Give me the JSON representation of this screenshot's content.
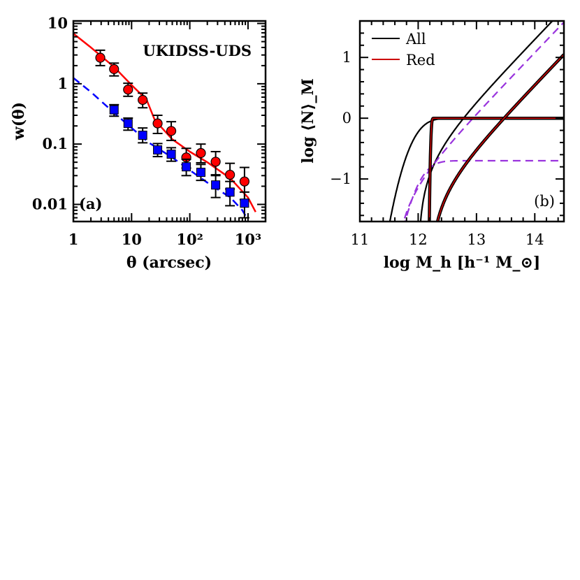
{
  "chart_data": [
    {
      "panel": "a",
      "type": "scatter",
      "title": "UKIDSS-UDS",
      "panel_label": "(a)",
      "xlabel": "θ (arcsec)",
      "ylabel": "w(θ)",
      "xscale": "log",
      "yscale": "log",
      "xlim": [
        1,
        2000
      ],
      "ylim": [
        0.0052,
        11
      ],
      "xticks": [
        {
          "v": 1,
          "label": "1"
        },
        {
          "v": 10,
          "label": "10"
        },
        {
          "v": 100,
          "label": "10²"
        },
        {
          "v": 1000,
          "label": "10³"
        }
      ],
      "yticks": [
        {
          "v": 0.01,
          "label": "0.01"
        },
        {
          "v": 0.1,
          "label": "0.1"
        },
        {
          "v": 1,
          "label": "1"
        },
        {
          "v": 10,
          "label": "10"
        }
      ],
      "series": [
        {
          "marker": "circle",
          "color": "#ff0000",
          "points": [
            {
              "x": 2.9,
              "y": 2.7,
              "lo": 2.0,
              "hi": 3.6
            },
            {
              "x": 5.0,
              "y": 1.75,
              "lo": 1.35,
              "hi": 2.2
            },
            {
              "x": 8.7,
              "y": 0.8,
              "lo": 0.62,
              "hi": 1.02
            },
            {
              "x": 15.5,
              "y": 0.54,
              "lo": 0.4,
              "hi": 0.7
            },
            {
              "x": 28,
              "y": 0.22,
              "lo": 0.15,
              "hi": 0.3
            },
            {
              "x": 48,
              "y": 0.165,
              "lo": 0.115,
              "hi": 0.235
            },
            {
              "x": 87,
              "y": 0.06,
              "lo": 0.04,
              "hi": 0.085
            },
            {
              "x": 155,
              "y": 0.071,
              "lo": 0.049,
              "hi": 0.1
            },
            {
              "x": 278,
              "y": 0.051,
              "lo": 0.031,
              "hi": 0.075
            },
            {
              "x": 490,
              "y": 0.031,
              "lo": 0.018,
              "hi": 0.048
            },
            {
              "x": 870,
              "y": 0.024,
              "lo": 0.012,
              "hi": 0.041
            }
          ]
        },
        {
          "marker": "square",
          "color": "#0000ff",
          "points": [
            {
              "x": 5.0,
              "y": 0.37,
              "lo": 0.29,
              "hi": 0.45
            },
            {
              "x": 8.7,
              "y": 0.22,
              "lo": 0.17,
              "hi": 0.27
            },
            {
              "x": 15.5,
              "y": 0.14,
              "lo": 0.105,
              "hi": 0.185
            },
            {
              "x": 28,
              "y": 0.08,
              "lo": 0.062,
              "hi": 0.102
            },
            {
              "x": 48,
              "y": 0.068,
              "lo": 0.052,
              "hi": 0.087
            },
            {
              "x": 87,
              "y": 0.042,
              "lo": 0.03,
              "hi": 0.056
            },
            {
              "x": 155,
              "y": 0.034,
              "lo": 0.025,
              "hi": 0.046
            },
            {
              "x": 278,
              "y": 0.021,
              "lo": 0.013,
              "hi": 0.03
            },
            {
              "x": 490,
              "y": 0.016,
              "lo": 0.0095,
              "hi": 0.024
            },
            {
              "x": 870,
              "y": 0.0105,
              "lo": 0.006,
              "hi": 0.016
            }
          ]
        }
      ],
      "curves": [
        {
          "color": "#ff0000",
          "dash": "solid",
          "points": [
            [
              1,
              6.8
            ],
            [
              2,
              4.0
            ],
            [
              5,
              1.9
            ],
            [
              10,
              0.95
            ],
            [
              18,
              0.55
            ],
            [
              25,
              0.25
            ],
            [
              50,
              0.12
            ],
            [
              100,
              0.075
            ],
            [
              200,
              0.05
            ],
            [
              500,
              0.027
            ],
            [
              1000,
              0.013
            ],
            [
              1350,
              0.0075
            ]
          ]
        },
        {
          "color": "#0000ff",
          "dash": "dashed",
          "points": [
            [
              1,
              1.25
            ],
            [
              2,
              0.73
            ],
            [
              5,
              0.33
            ],
            [
              10,
              0.185
            ],
            [
              20,
              0.105
            ],
            [
              50,
              0.06
            ],
            [
              100,
              0.037
            ],
            [
              200,
              0.023
            ],
            [
              500,
              0.013
            ],
            [
              800,
              0.008
            ],
            [
              1000,
              0.0055
            ]
          ]
        }
      ]
    },
    {
      "panel": "b",
      "type": "line",
      "panel_label": "(b)",
      "xlabel": "log M_h [h⁻¹ M_⊙]",
      "ylabel": "log ⟨N⟩_M",
      "xlim": [
        11,
        14.5
      ],
      "ylim": [
        -1.7,
        1.6
      ],
      "xticks": [
        {
          "v": 11,
          "label": "11"
        },
        {
          "v": 12,
          "label": "12"
        },
        {
          "v": 13,
          "label": "13"
        },
        {
          "v": 14,
          "label": "14"
        }
      ],
      "yticks": [
        {
          "v": -1,
          "label": "−1"
        },
        {
          "v": 0,
          "label": "0"
        },
        {
          "v": 1,
          "label": "1"
        }
      ],
      "legend": [
        {
          "label": "All",
          "color": "#000000"
        },
        {
          "label": "Red",
          "color": "#cc0000"
        }
      ],
      "curves": [
        {
          "color": "#000000",
          "dash": "solid",
          "kind": "central",
          "mmin": 11.95,
          "sigma": 0.3,
          "amp": 0
        },
        {
          "color": "#000000",
          "dash": "solid",
          "kind": "sat",
          "m0": 12.0,
          "m1": 12.7,
          "alpha": 1.0
        },
        {
          "color": "#9933dd",
          "dash": "dashed",
          "kind": "central",
          "mmin": 12.05,
          "sigma": 0.3,
          "amp": -0.7
        },
        {
          "color": "#9933dd",
          "dash": "dashed",
          "kind": "sat",
          "m0": 11.6,
          "m1": 12.92,
          "alpha": 1.0
        },
        {
          "color": "#000000",
          "dash": "solid",
          "kind": "central_sharp",
          "mmin": 12.22,
          "sigma": 0.02,
          "amp": 0,
          "outline": "#cc0000"
        },
        {
          "color": "#000000",
          "dash": "solid",
          "kind": "sat_bend",
          "m0": 12.2,
          "m1": 13.45,
          "alpha": 1.0,
          "outline": "#cc0000"
        }
      ]
    }
  ]
}
